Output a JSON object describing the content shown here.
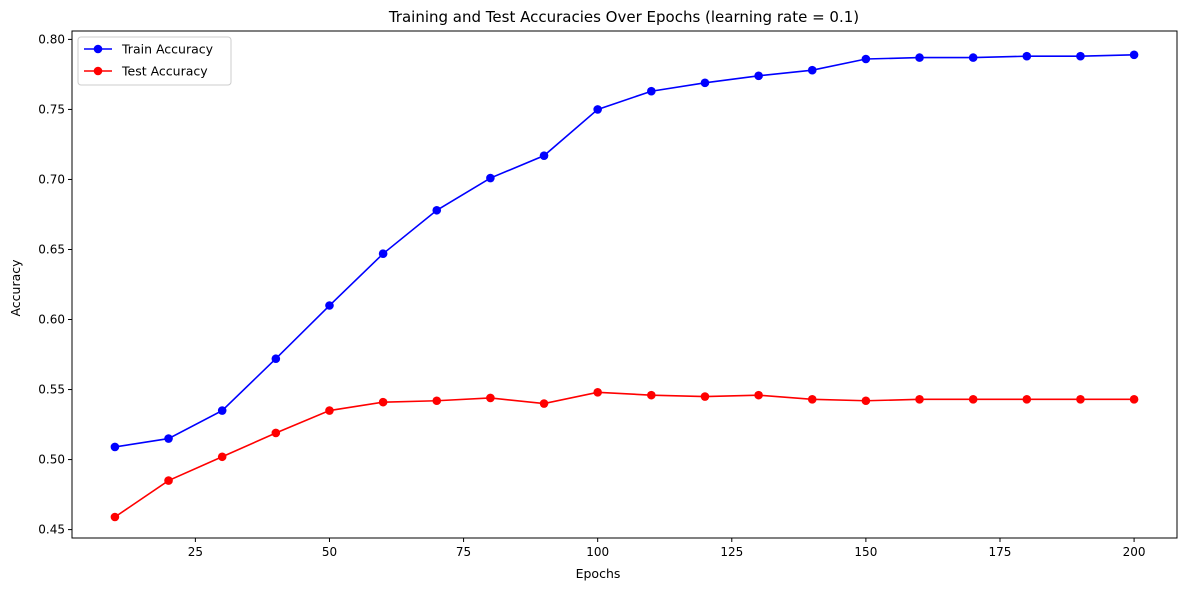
{
  "chart_data": {
    "type": "line",
    "title": "Training and Test Accuracies Over Epochs (learning rate = 0.1)",
    "xlabel": "Epochs",
    "ylabel": "Accuracy",
    "xlim": [
      2,
      208
    ],
    "ylim": [
      0.444,
      0.806
    ],
    "xticks": [
      25,
      50,
      75,
      100,
      125,
      150,
      175,
      200
    ],
    "yticks": [
      0.45,
      0.5,
      0.55,
      0.6,
      0.65,
      0.7,
      0.75,
      0.8
    ],
    "xtick_labels": [
      "25",
      "50",
      "75",
      "100",
      "125",
      "150",
      "175",
      "200"
    ],
    "ytick_labels": [
      "0.45",
      "0.50",
      "0.55",
      "0.60",
      "0.65",
      "0.70",
      "0.75",
      "0.80"
    ],
    "x": [
      10,
      20,
      30,
      40,
      50,
      60,
      70,
      80,
      90,
      100,
      110,
      120,
      130,
      140,
      150,
      160,
      170,
      180,
      190,
      200
    ],
    "series": [
      {
        "name": "Train Accuracy",
        "color": "#0000ff",
        "marker": "circle",
        "values": [
          0.509,
          0.515,
          0.535,
          0.572,
          0.61,
          0.647,
          0.678,
          0.701,
          0.717,
          0.75,
          0.763,
          0.769,
          0.774,
          0.778,
          0.786,
          0.787,
          0.787,
          0.788,
          0.788,
          0.789
        ]
      },
      {
        "name": "Test Accuracy",
        "color": "#ff0000",
        "marker": "circle",
        "values": [
          0.459,
          0.485,
          0.502,
          0.519,
          0.535,
          0.541,
          0.542,
          0.544,
          0.54,
          0.548,
          0.546,
          0.545,
          0.546,
          0.543,
          0.542,
          0.543,
          0.543,
          0.543,
          0.543,
          0.543
        ]
      }
    ],
    "grid": false,
    "legend_position": "top-left"
  }
}
